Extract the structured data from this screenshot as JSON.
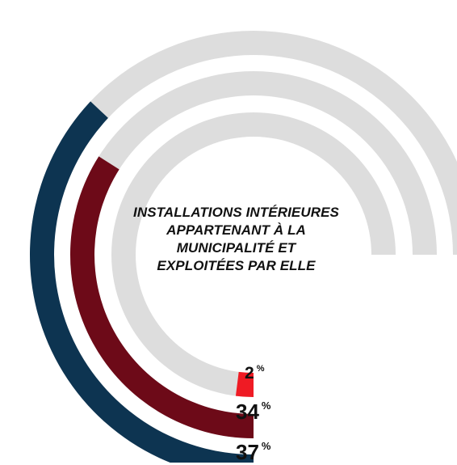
{
  "chart_data": {
    "type": "radial-bar",
    "title_lines": [
      "INSTALLATIONS INTÉRIEURES",
      "APPARTENANT À LA",
      "MUNICIPALITÉ ET",
      "EXPLOITÉES PAR ELLE"
    ],
    "series": [
      {
        "value": 37,
        "label": "37",
        "unit": "%",
        "color": "#0d3451"
      },
      {
        "value": 34,
        "label": "34",
        "unit": "%",
        "color": "#6d0a18"
      },
      {
        "value": 2,
        "label": "2",
        "unit": "%",
        "color": "#ef1b24"
      }
    ],
    "track_color": "#dddddd",
    "max_value": 100
  }
}
